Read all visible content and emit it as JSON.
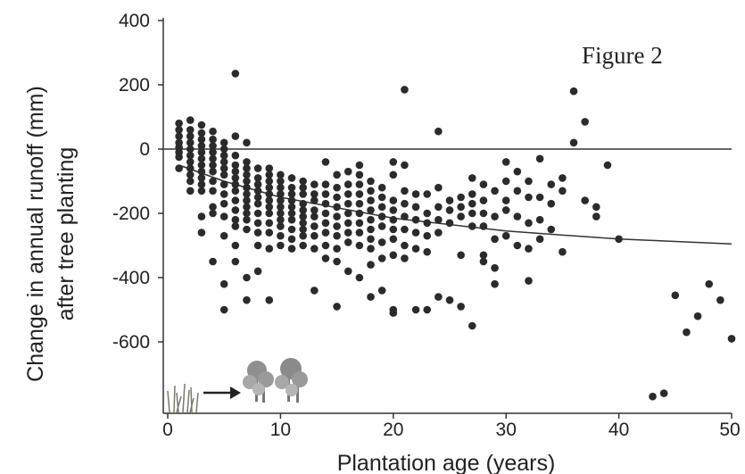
{
  "chart_data": {
    "type": "scatter",
    "annotation": "Figure 2",
    "xlabel": "Plantation age (years)",
    "ylabel_line1": "Change in annual runoff (mm)",
    "ylabel_line2": "after tree planting",
    "xlim": [
      0,
      50
    ],
    "ylim": [
      -780,
      400
    ],
    "xticks": [
      0,
      10,
      20,
      30,
      40,
      50
    ],
    "yticks": [
      400,
      200,
      0,
      -200,
      -400,
      -600
    ],
    "zero_line": true,
    "trend_line": [
      [
        1,
        -50
      ],
      [
        5,
        -100
      ],
      [
        10,
        -150
      ],
      [
        20,
        -215
      ],
      [
        30,
        -255
      ],
      [
        40,
        -280
      ],
      [
        50,
        -295
      ]
    ],
    "point_color": "#2b2b2b",
    "points": [
      [
        1,
        80
      ],
      [
        1,
        60
      ],
      [
        1,
        40
      ],
      [
        1,
        20
      ],
      [
        1,
        5
      ],
      [
        1,
        -10
      ],
      [
        1,
        -25
      ],
      [
        1,
        -60
      ],
      [
        2,
        90
      ],
      [
        2,
        60
      ],
      [
        2,
        40
      ],
      [
        2,
        20
      ],
      [
        2,
        0
      ],
      [
        2,
        -20
      ],
      [
        2,
        -40
      ],
      [
        2,
        -60
      ],
      [
        2,
        -80
      ],
      [
        2,
        -100
      ],
      [
        2,
        -130
      ],
      [
        3,
        75
      ],
      [
        3,
        50
      ],
      [
        3,
        30
      ],
      [
        3,
        10
      ],
      [
        3,
        -10
      ],
      [
        3,
        -30
      ],
      [
        3,
        -50
      ],
      [
        3,
        -70
      ],
      [
        3,
        -90
      ],
      [
        3,
        -110
      ],
      [
        3,
        -130
      ],
      [
        3,
        -210
      ],
      [
        3,
        -260
      ],
      [
        4,
        55
      ],
      [
        4,
        30
      ],
      [
        4,
        10
      ],
      [
        4,
        -10
      ],
      [
        4,
        -30
      ],
      [
        4,
        -50
      ],
      [
        4,
        -70
      ],
      [
        4,
        -100
      ],
      [
        4,
        -130
      ],
      [
        4,
        -180
      ],
      [
        4,
        -200
      ],
      [
        4,
        -350
      ],
      [
        5,
        20
      ],
      [
        5,
        0
      ],
      [
        5,
        -20
      ],
      [
        5,
        -40
      ],
      [
        5,
        -60
      ],
      [
        5,
        -80
      ],
      [
        5,
        -110
      ],
      [
        5,
        -140
      ],
      [
        5,
        -170
      ],
      [
        5,
        -210
      ],
      [
        5,
        -270
      ],
      [
        5,
        -420
      ],
      [
        5,
        -500
      ],
      [
        6,
        235
      ],
      [
        6,
        40
      ],
      [
        6,
        -20
      ],
      [
        6,
        -50
      ],
      [
        6,
        -70
      ],
      [
        6,
        -90
      ],
      [
        6,
        -110
      ],
      [
        6,
        -130
      ],
      [
        6,
        -160
      ],
      [
        6,
        -190
      ],
      [
        6,
        -220
      ],
      [
        6,
        -240
      ],
      [
        6,
        -300
      ],
      [
        6,
        -350
      ],
      [
        7,
        20
      ],
      [
        7,
        -40
      ],
      [
        7,
        -60
      ],
      [
        7,
        -80
      ],
      [
        7,
        -100
      ],
      [
        7,
        -120
      ],
      [
        7,
        -140
      ],
      [
        7,
        -160
      ],
      [
        7,
        -180
      ],
      [
        7,
        -200
      ],
      [
        7,
        -220
      ],
      [
        7,
        -250
      ],
      [
        7,
        -400
      ],
      [
        7,
        -470
      ],
      [
        8,
        -60
      ],
      [
        8,
        -90
      ],
      [
        8,
        -110
      ],
      [
        8,
        -130
      ],
      [
        8,
        -150
      ],
      [
        8,
        -170
      ],
      [
        8,
        -200
      ],
      [
        8,
        -230
      ],
      [
        8,
        -260
      ],
      [
        8,
        -300
      ],
      [
        8,
        -380
      ],
      [
        9,
        -60
      ],
      [
        9,
        -80
      ],
      [
        9,
        -100
      ],
      [
        9,
        -120
      ],
      [
        9,
        -140
      ],
      [
        9,
        -160
      ],
      [
        9,
        -180
      ],
      [
        9,
        -200
      ],
      [
        9,
        -230
      ],
      [
        9,
        -260
      ],
      [
        9,
        -310
      ],
      [
        9,
        -470
      ],
      [
        10,
        -80
      ],
      [
        10,
        -100
      ],
      [
        10,
        -120
      ],
      [
        10,
        -140
      ],
      [
        10,
        -160
      ],
      [
        10,
        -180
      ],
      [
        10,
        -200
      ],
      [
        10,
        -220
      ],
      [
        10,
        -240
      ],
      [
        10,
        -270
      ],
      [
        10,
        -300
      ],
      [
        11,
        -90
      ],
      [
        11,
        -120
      ],
      [
        11,
        -140
      ],
      [
        11,
        -160
      ],
      [
        11,
        -180
      ],
      [
        11,
        -200
      ],
      [
        11,
        -220
      ],
      [
        11,
        -250
      ],
      [
        11,
        -280
      ],
      [
        11,
        -310
      ],
      [
        12,
        -100
      ],
      [
        12,
        -120
      ],
      [
        12,
        -140
      ],
      [
        12,
        -170
      ],
      [
        12,
        -190
      ],
      [
        12,
        -210
      ],
      [
        12,
        -230
      ],
      [
        12,
        -250
      ],
      [
        12,
        -270
      ],
      [
        12,
        -300
      ],
      [
        13,
        -110
      ],
      [
        13,
        -140
      ],
      [
        13,
        -160
      ],
      [
        13,
        -190
      ],
      [
        13,
        -210
      ],
      [
        13,
        -240
      ],
      [
        13,
        -270
      ],
      [
        13,
        -310
      ],
      [
        13,
        -440
      ],
      [
        14,
        -40
      ],
      [
        14,
        -110
      ],
      [
        14,
        -140
      ],
      [
        14,
        -170
      ],
      [
        14,
        -200
      ],
      [
        14,
        -230
      ],
      [
        14,
        -260
      ],
      [
        14,
        -300
      ],
      [
        14,
        -340
      ],
      [
        15,
        -80
      ],
      [
        15,
        -120
      ],
      [
        15,
        -150
      ],
      [
        15,
        -180
      ],
      [
        15,
        -210
      ],
      [
        15,
        -240
      ],
      [
        15,
        -270
      ],
      [
        15,
        -310
      ],
      [
        15,
        -350
      ],
      [
        15,
        -490
      ],
      [
        16,
        -70
      ],
      [
        16,
        -110
      ],
      [
        16,
        -140
      ],
      [
        16,
        -170
      ],
      [
        16,
        -200
      ],
      [
        16,
        -230
      ],
      [
        16,
        -260
      ],
      [
        16,
        -290
      ],
      [
        16,
        -380
      ],
      [
        17,
        -50
      ],
      [
        17,
        -80
      ],
      [
        17,
        -110
      ],
      [
        17,
        -140
      ],
      [
        17,
        -170
      ],
      [
        17,
        -200
      ],
      [
        17,
        -230
      ],
      [
        17,
        -260
      ],
      [
        17,
        -300
      ],
      [
        17,
        -400
      ],
      [
        18,
        -100
      ],
      [
        18,
        -130
      ],
      [
        18,
        -160
      ],
      [
        18,
        -190
      ],
      [
        18,
        -220
      ],
      [
        18,
        -250
      ],
      [
        18,
        -280
      ],
      [
        18,
        -310
      ],
      [
        18,
        -360
      ],
      [
        18,
        -460
      ],
      [
        19,
        -120
      ],
      [
        19,
        -150
      ],
      [
        19,
        -180
      ],
      [
        19,
        -210
      ],
      [
        19,
        -240
      ],
      [
        19,
        -290
      ],
      [
        19,
        -340
      ],
      [
        19,
        -440
      ],
      [
        20,
        -40
      ],
      [
        20,
        -80
      ],
      [
        20,
        -160
      ],
      [
        20,
        -190
      ],
      [
        20,
        -220
      ],
      [
        20,
        -250
      ],
      [
        20,
        -280
      ],
      [
        20,
        -330
      ],
      [
        20,
        -500
      ],
      [
        20,
        -510
      ],
      [
        21,
        185
      ],
      [
        21,
        -50
      ],
      [
        21,
        -130
      ],
      [
        21,
        -170
      ],
      [
        21,
        -210
      ],
      [
        21,
        -250
      ],
      [
        21,
        -300
      ],
      [
        21,
        -340
      ],
      [
        22,
        -140
      ],
      [
        22,
        -180
      ],
      [
        22,
        -220
      ],
      [
        22,
        -260
      ],
      [
        22,
        -310
      ],
      [
        22,
        -500
      ],
      [
        23,
        -140
      ],
      [
        23,
        -200
      ],
      [
        23,
        -230
      ],
      [
        23,
        -270
      ],
      [
        23,
        -320
      ],
      [
        23,
        -500
      ],
      [
        24,
        55
      ],
      [
        24,
        -120
      ],
      [
        24,
        -180
      ],
      [
        24,
        -220
      ],
      [
        24,
        -260
      ],
      [
        24,
        -460
      ],
      [
        25,
        -160
      ],
      [
        25,
        -190
      ],
      [
        25,
        -230
      ],
      [
        25,
        -470
      ],
      [
        26,
        -150
      ],
      [
        26,
        -180
      ],
      [
        26,
        -210
      ],
      [
        26,
        -330
      ],
      [
        26,
        -490
      ],
      [
        27,
        -90
      ],
      [
        27,
        -140
      ],
      [
        27,
        -170
      ],
      [
        27,
        -200
      ],
      [
        27,
        -240
      ],
      [
        27,
        -550
      ],
      [
        28,
        -110
      ],
      [
        28,
        -160
      ],
      [
        28,
        -200
      ],
      [
        28,
        -240
      ],
      [
        28,
        -330
      ],
      [
        28,
        -350
      ],
      [
        29,
        -130
      ],
      [
        29,
        -210
      ],
      [
        29,
        -280
      ],
      [
        29,
        -370
      ],
      [
        29,
        -420
      ],
      [
        30,
        -40
      ],
      [
        30,
        -100
      ],
      [
        30,
        -160
      ],
      [
        30,
        -190
      ],
      [
        30,
        -270
      ],
      [
        31,
        -70
      ],
      [
        31,
        -130
      ],
      [
        31,
        -210
      ],
      [
        31,
        -300
      ],
      [
        32,
        -100
      ],
      [
        32,
        -150
      ],
      [
        32,
        -230
      ],
      [
        32,
        -310
      ],
      [
        32,
        -410
      ],
      [
        33,
        -30
      ],
      [
        33,
        -150
      ],
      [
        33,
        -220
      ],
      [
        33,
        -280
      ],
      [
        34,
        -110
      ],
      [
        34,
        -170
      ],
      [
        34,
        -250
      ],
      [
        35,
        -90
      ],
      [
        35,
        -130
      ],
      [
        35,
        -320
      ],
      [
        36,
        180
      ],
      [
        36,
        20
      ],
      [
        37,
        85
      ],
      [
        37,
        -160
      ],
      [
        38,
        -180
      ],
      [
        38,
        -210
      ],
      [
        39,
        -50
      ],
      [
        40,
        -280
      ],
      [
        43,
        -770
      ],
      [
        44,
        -760
      ],
      [
        45,
        -455
      ],
      [
        46,
        -570
      ],
      [
        47,
        -520
      ],
      [
        48,
        -420
      ],
      [
        49,
        -470
      ],
      [
        50,
        -590
      ]
    ]
  }
}
